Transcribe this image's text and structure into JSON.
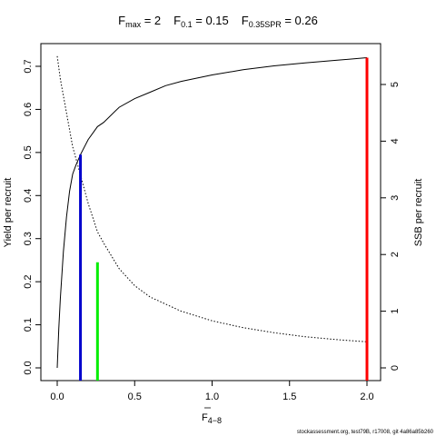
{
  "chart_data": {
    "type": "line",
    "title": {
      "fmax": {
        "sym": "F",
        "sub": "max",
        "rest": " = 2"
      },
      "f01": {
        "sym": "F",
        "sub": "0.1",
        "rest": " = 0.15"
      },
      "fspr": {
        "sym": "F",
        "sub": "0.35SPR",
        "rest": " = 0.26"
      }
    },
    "xlabel": {
      "sym": "F",
      "sub": "4−8"
    },
    "ylabel_left": "Yield per recruit",
    "ylabel_right": "SSB per recruit",
    "xlim": [
      0,
      2.0
    ],
    "ylim_left": [
      0,
      0.72
    ],
    "ylim_right": [
      0,
      5.5
    ],
    "x_ticks": [
      "0.0",
      "0.5",
      "1.0",
      "1.5",
      "2.0"
    ],
    "y_left_ticks": [
      "0.0",
      "0.1",
      "0.2",
      "0.3",
      "0.4",
      "0.5",
      "0.6",
      "0.7"
    ],
    "y_right_ticks": [
      "0",
      "1",
      "2",
      "3",
      "4",
      "5"
    ],
    "series": [
      {
        "axis": "left",
        "style": "solid",
        "x": [
          0,
          0.01,
          0.02,
          0.04,
          0.06,
          0.08,
          0.1,
          0.12,
          0.15,
          0.2,
          0.26,
          0.3,
          0.4,
          0.5,
          0.6,
          0.7,
          0.8,
          1.0,
          1.2,
          1.4,
          1.6,
          1.8,
          2.0
        ],
        "y": [
          0.0,
          0.09,
          0.16,
          0.27,
          0.35,
          0.41,
          0.45,
          0.47,
          0.495,
          0.53,
          0.56,
          0.57,
          0.605,
          0.625,
          0.64,
          0.655,
          0.665,
          0.68,
          0.692,
          0.701,
          0.708,
          0.714,
          0.72
        ]
      },
      {
        "axis": "right",
        "style": "dotted",
        "x": [
          0,
          0.02,
          0.04,
          0.06,
          0.08,
          0.1,
          0.12,
          0.15,
          0.2,
          0.26,
          0.3,
          0.4,
          0.5,
          0.6,
          0.8,
          1.0,
          1.2,
          1.4,
          1.6,
          1.8,
          2.0
        ],
        "y": [
          5.5,
          5.1,
          4.8,
          4.5,
          4.2,
          3.9,
          3.7,
          3.4,
          2.9,
          2.4,
          2.2,
          1.75,
          1.45,
          1.25,
          1.0,
          0.83,
          0.71,
          0.62,
          0.55,
          0.5,
          0.46
        ]
      }
    ],
    "reference_lines": [
      {
        "label": "Fmax",
        "x": 2.0,
        "y": 0.72,
        "color": "#ff0000"
      },
      {
        "label": "F0.1",
        "x": 0.15,
        "y": 0.495,
        "color": "#0000cc"
      },
      {
        "label": "F0.35SPR",
        "x": 0.26,
        "y": 0.245,
        "color": "#00ee00"
      }
    ]
  },
  "footer": "stockassessment.org, test79B, r17008, git 4a86a85b260"
}
